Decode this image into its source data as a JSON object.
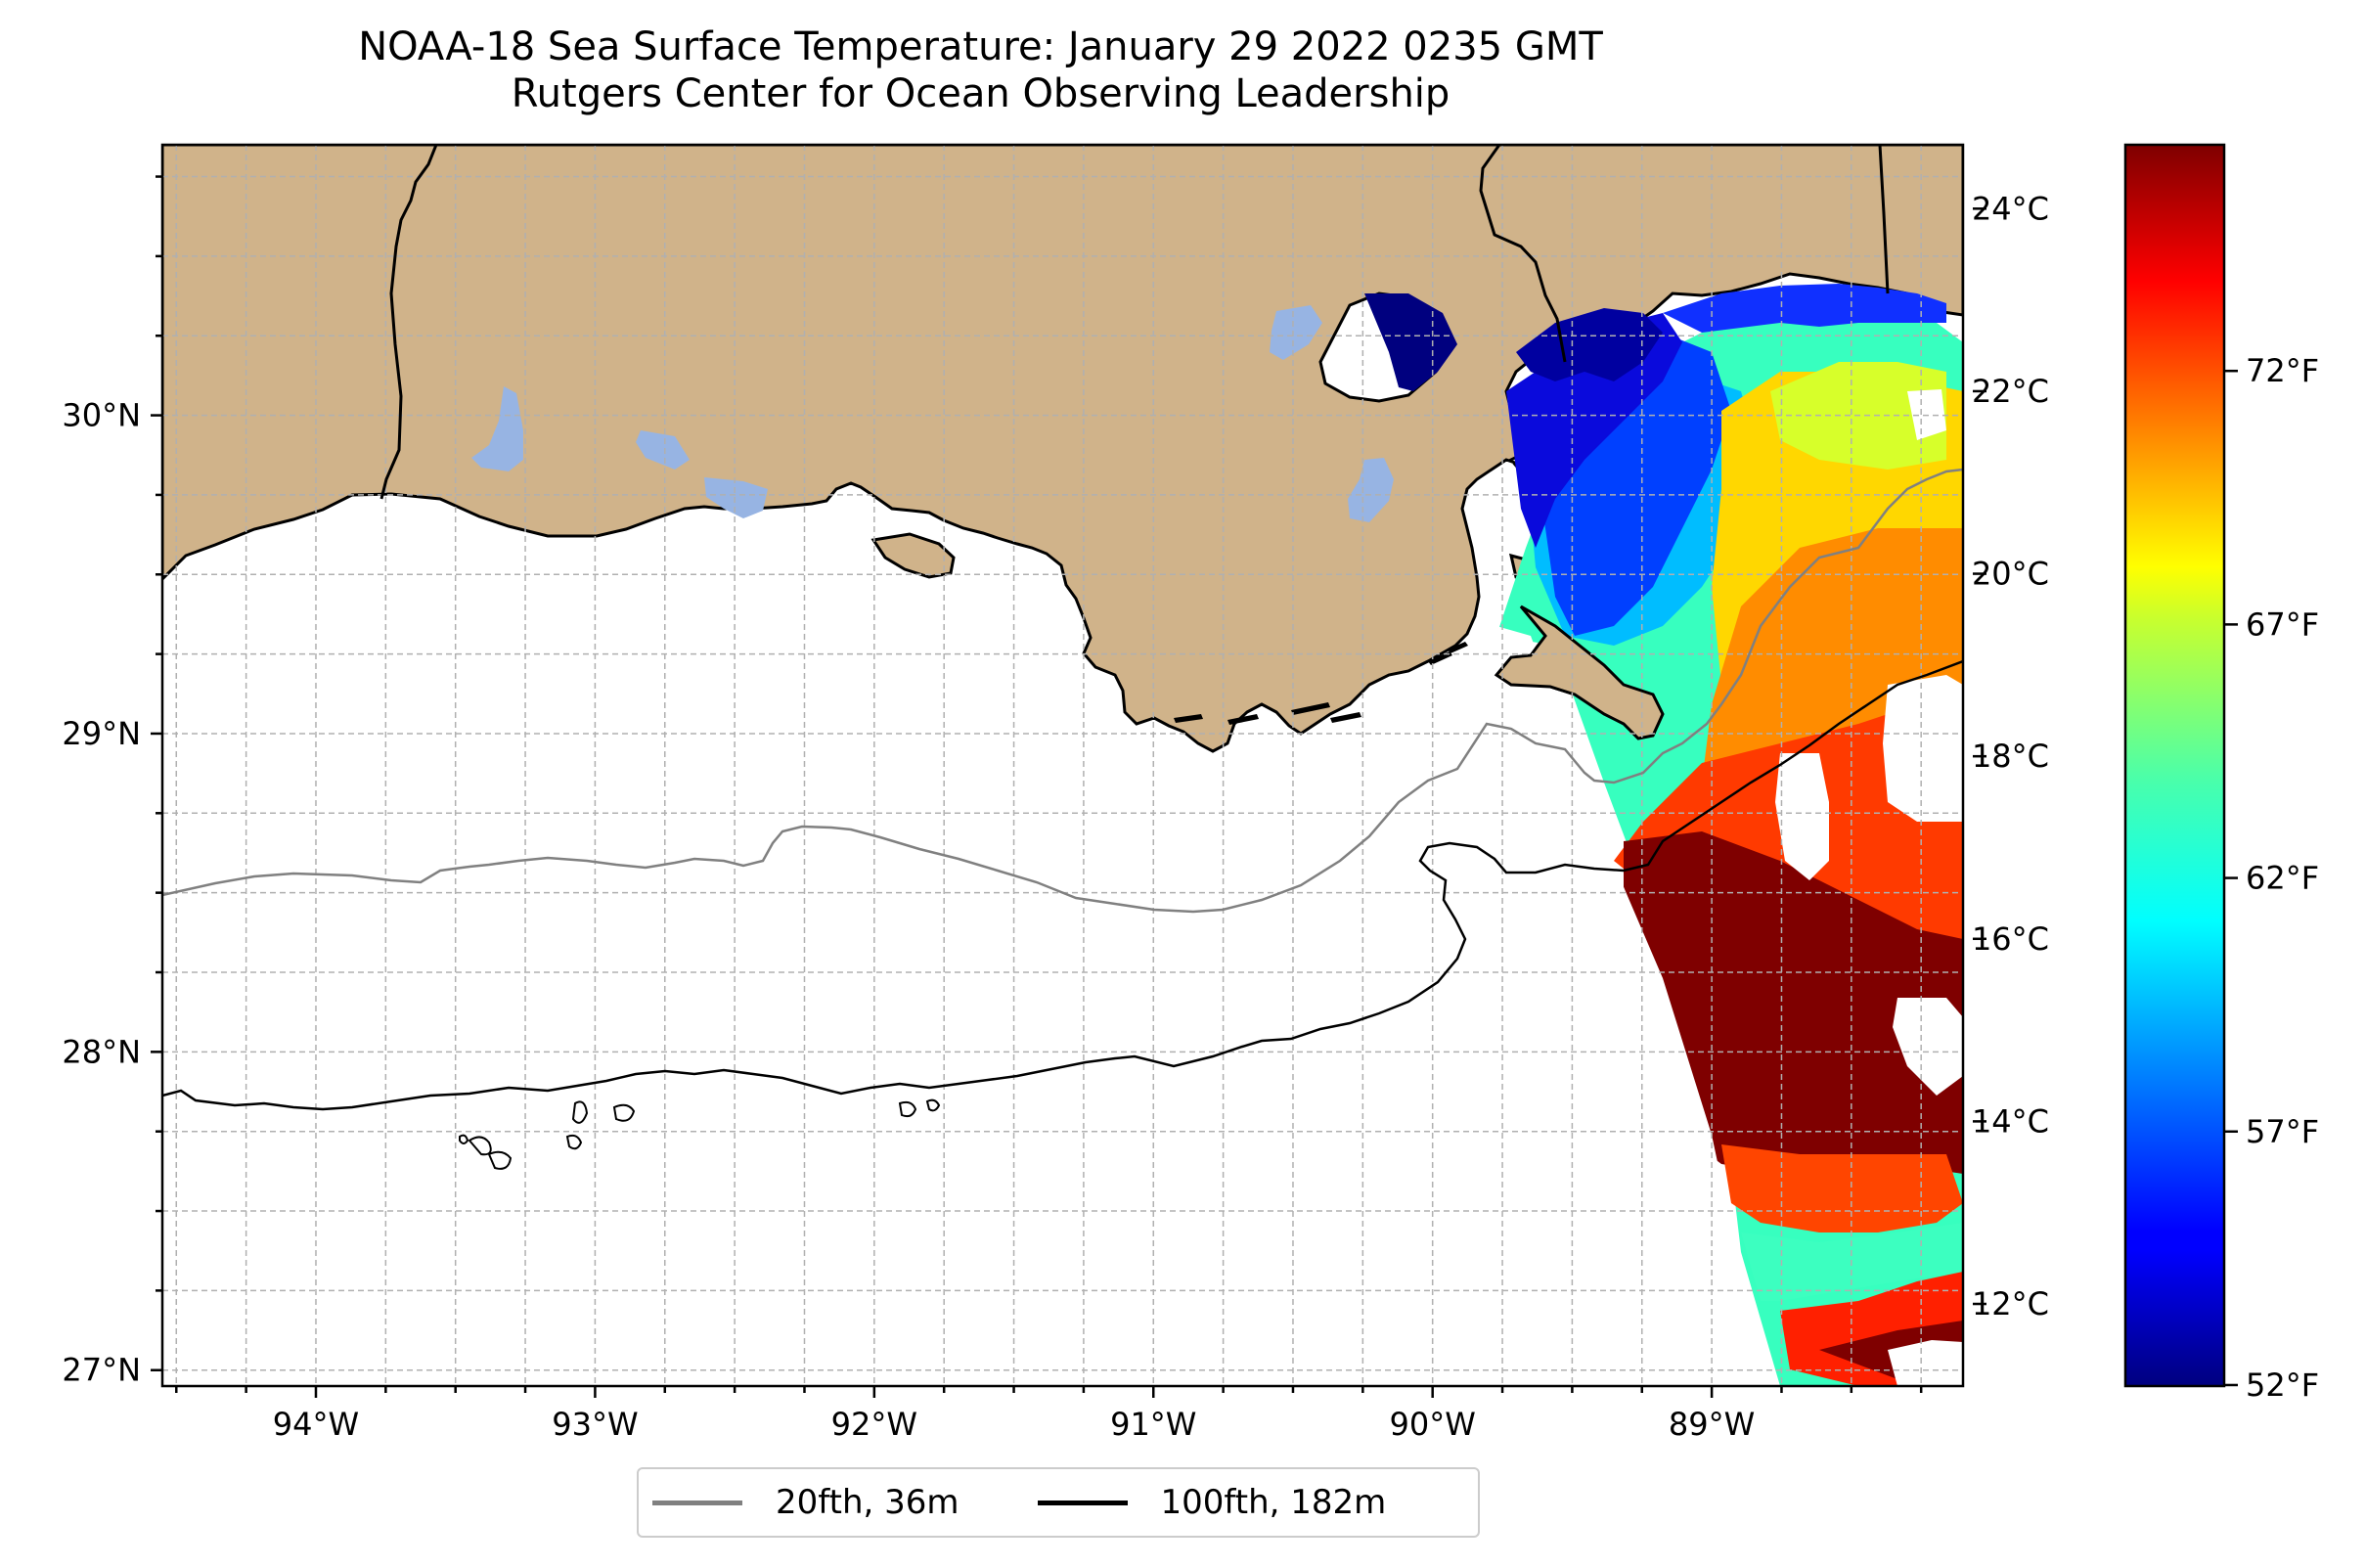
{
  "title": {
    "line1": "NOAA-18 Sea Surface Temperature: January 29 2022 0235 GMT",
    "line2": "Rutgers Center for Ocean Observing Leadership"
  },
  "map": {
    "lon_range": [
      -94.55,
      -88.1
    ],
    "lat_range": [
      26.95,
      30.85
    ],
    "lon_ticks": [
      "94°W",
      "93°W",
      "92°W",
      "91°W",
      "90°W",
      "89°W"
    ],
    "lat_ticks": [
      "27°N",
      "28°N",
      "29°N",
      "30°N"
    ],
    "grid": "on",
    "colors": {
      "land": "#d0b38a",
      "lakes": "#97b4e3",
      "ocean": "#ffffff",
      "coastline": "#000000",
      "contour_20fth": "#808080",
      "contour_100fth": "#000000"
    }
  },
  "colorbar": {
    "celsius_ticks": [
      "24°C",
      "22°C",
      "20°C",
      "18°C",
      "16°C",
      "14°C",
      "12°C"
    ],
    "fahrenheit_ticks": [
      "72°F",
      "67°F",
      "62°F",
      "57°F",
      "52°F"
    ],
    "range_c": [
      11.1,
      24.7
    ],
    "colormap": "jet"
  },
  "legend": {
    "items": [
      {
        "label": "20fth, 36m",
        "color": "#808080"
      },
      {
        "label": "100fth, 182m",
        "color": "#000000"
      }
    ]
  }
}
